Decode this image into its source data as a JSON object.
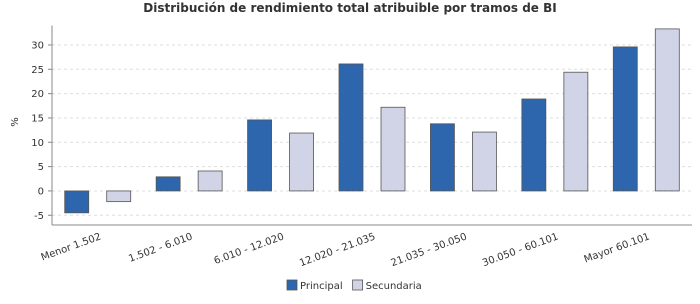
{
  "chart_data": {
    "type": "bar",
    "title": "Distribución de rendimiento total atribuible por tramos de BI",
    "y_label": "%",
    "categories": [
      "Menor 1.502",
      "1.502 - 6.010",
      "6.010 - 12.020",
      "12.020 - 21.035",
      "21.035 - 30.050",
      "30.050 - 60.101",
      "Mayor 60.101"
    ],
    "series": [
      {
        "name": "Principal",
        "color": "#2e66ad",
        "values": [
          -4.5,
          2.9,
          14.6,
          26.1,
          13.8,
          18.9,
          29.6
        ]
      },
      {
        "name": "Secundaria",
        "color": "#d0d4e6",
        "values": [
          -2.2,
          4.1,
          11.9,
          17.2,
          12.1,
          24.4,
          33.3
        ]
      }
    ],
    "ylim": [
      -7,
      34
    ],
    "yticks": [
      -5,
      0,
      5,
      10,
      15,
      20,
      25,
      30
    ],
    "grid": true
  }
}
